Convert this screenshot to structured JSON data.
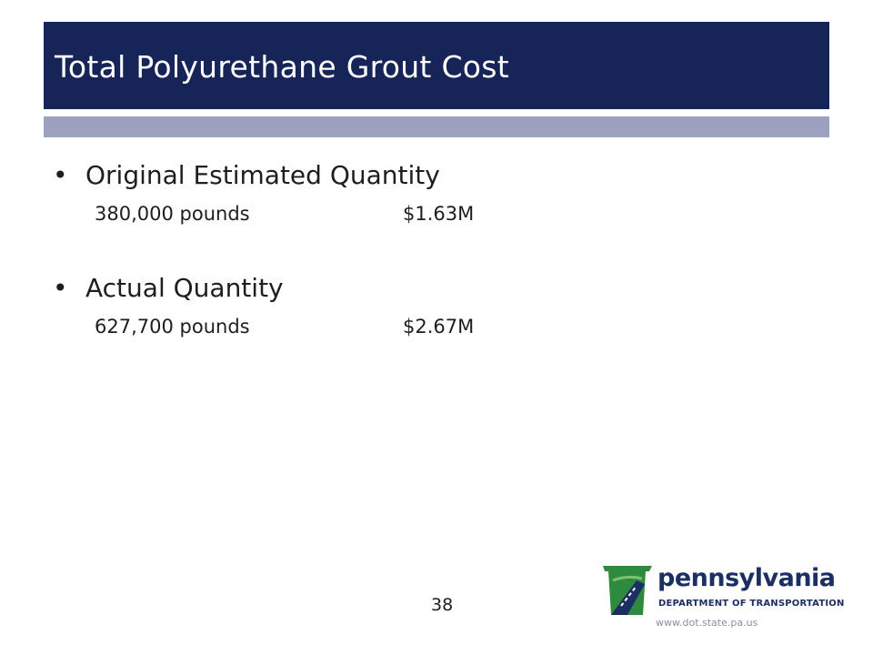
{
  "slide": {
    "title": "Total Polyurethane Grout Cost",
    "bullets": [
      {
        "label": "Original Estimated Quantity",
        "quantity": "380,000 pounds",
        "cost": "$1.63M"
      },
      {
        "label": "Actual Quantity",
        "quantity": "627,700 pounds",
        "cost": "$2.67M"
      }
    ],
    "page_number": "38"
  },
  "branding": {
    "logo_word": "pennsylvania",
    "logo_subtitle": "DEPARTMENT OF TRANSPORTATION",
    "url": "www.dot.state.pa.us",
    "colors": {
      "navy": "#162457",
      "accent_bar": "#9da1c0",
      "keystone_green": "#2e8b3d",
      "keystone_blue": "#1c2f63"
    }
  }
}
